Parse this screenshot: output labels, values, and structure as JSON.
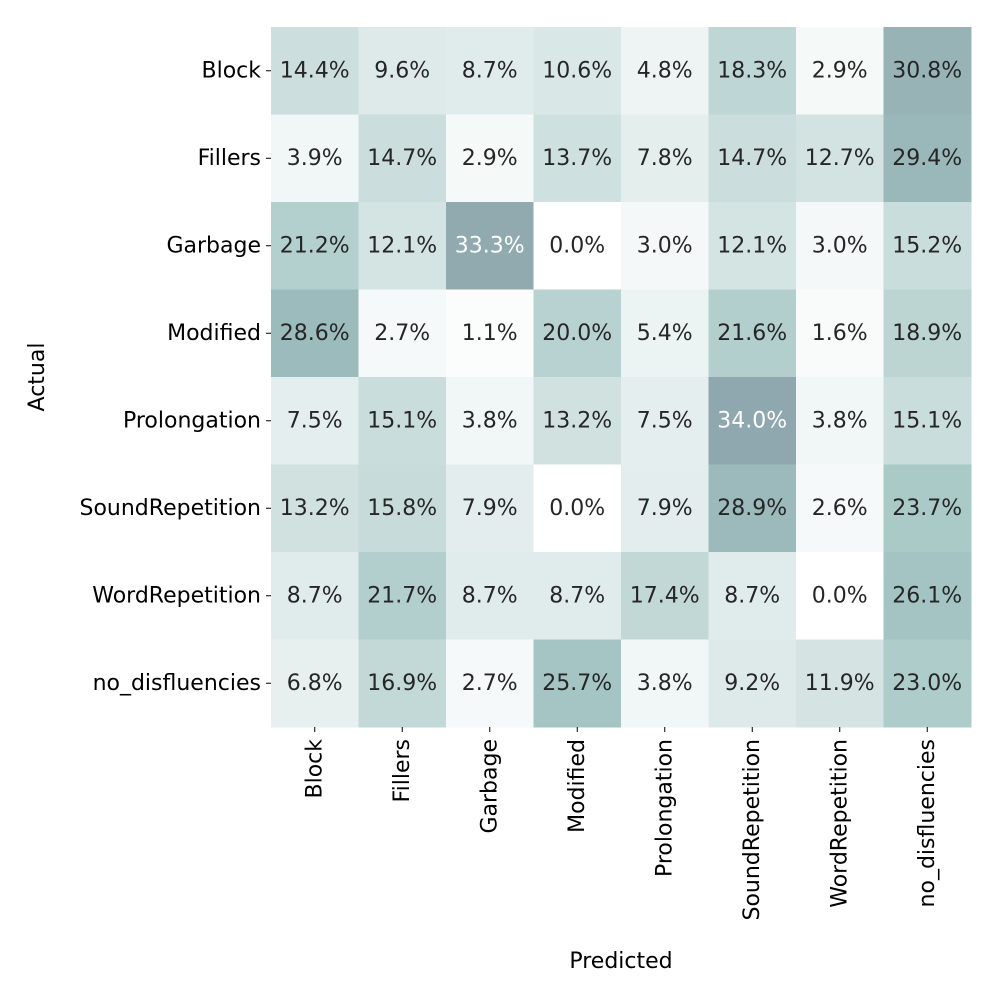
{
  "chart_data": {
    "type": "heatmap",
    "title": "",
    "xlabel": "Predicted",
    "ylabel": "Actual",
    "x_categories": [
      "Block",
      "Fillers",
      "Garbage",
      "Modified",
      "Prolongation",
      "SoundRepetition",
      "WordRepetition",
      "no_disfluencies"
    ],
    "y_categories": [
      "Block",
      "Fillers",
      "Garbage",
      "Modified",
      "Prolongation",
      "SoundRepetition",
      "WordRepetition",
      "no_disfluencies"
    ],
    "values": [
      [
        14.4,
        9.6,
        8.7,
        10.6,
        4.8,
        18.3,
        2.9,
        30.8
      ],
      [
        3.9,
        14.7,
        2.9,
        13.7,
        7.8,
        14.7,
        12.7,
        29.4
      ],
      [
        21.2,
        12.1,
        33.3,
        0.0,
        3.0,
        12.1,
        3.0,
        15.2
      ],
      [
        28.6,
        2.7,
        1.1,
        20.0,
        5.4,
        21.6,
        1.6,
        18.9
      ],
      [
        7.5,
        15.1,
        3.8,
        13.2,
        7.5,
        34.0,
        3.8,
        15.1
      ],
      [
        13.2,
        15.8,
        7.9,
        0.0,
        7.9,
        28.9,
        2.6,
        23.7
      ],
      [
        8.7,
        21.7,
        8.7,
        8.7,
        17.4,
        8.7,
        0.0,
        26.1
      ],
      [
        6.8,
        16.9,
        2.7,
        25.7,
        3.8,
        9.2,
        11.9,
        23.0
      ]
    ],
    "value_format": "percent_1dp",
    "color_scale": {
      "min_value": 0,
      "max_value": 34.0,
      "low_color": "#ffffff",
      "mid_color": "#a4c6c4",
      "high_color": "#8fa7ae"
    },
    "text_colors": {
      "dark": "#262626",
      "light": "#ffffff"
    },
    "colorbar": false,
    "grid": false
  }
}
